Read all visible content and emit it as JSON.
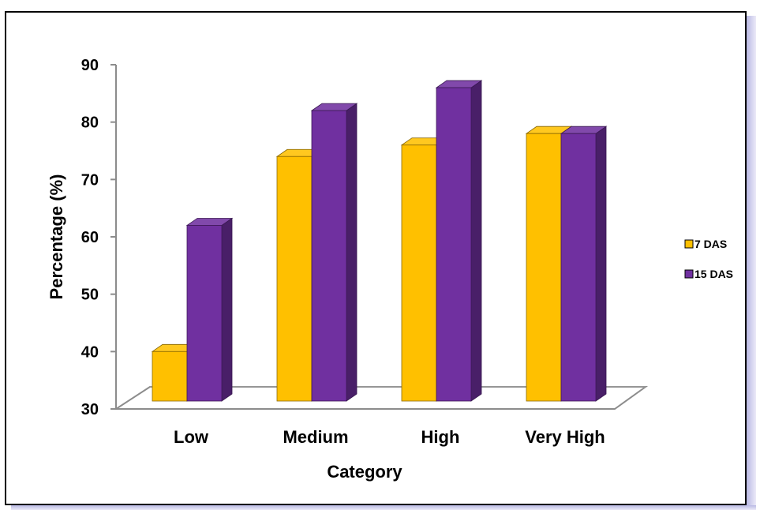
{
  "chart_data": {
    "type": "bar",
    "categories": [
      "Low",
      "Medium",
      "High",
      "Very High"
    ],
    "series": [
      {
        "name": "7 DAS",
        "color": "#FFC000",
        "values": [
          40,
          74,
          76,
          78
        ]
      },
      {
        "name": "15 DAS",
        "color": "#7030A0",
        "values": [
          62,
          82,
          86,
          78
        ]
      }
    ],
    "xlabel": "Category",
    "ylabel": "Percentage (%)",
    "ylim": [
      30,
      90
    ],
    "yticks": [
      30,
      40,
      50,
      60,
      70,
      80,
      90
    ],
    "legend_position": "right",
    "grid": false,
    "three_d": true
  }
}
